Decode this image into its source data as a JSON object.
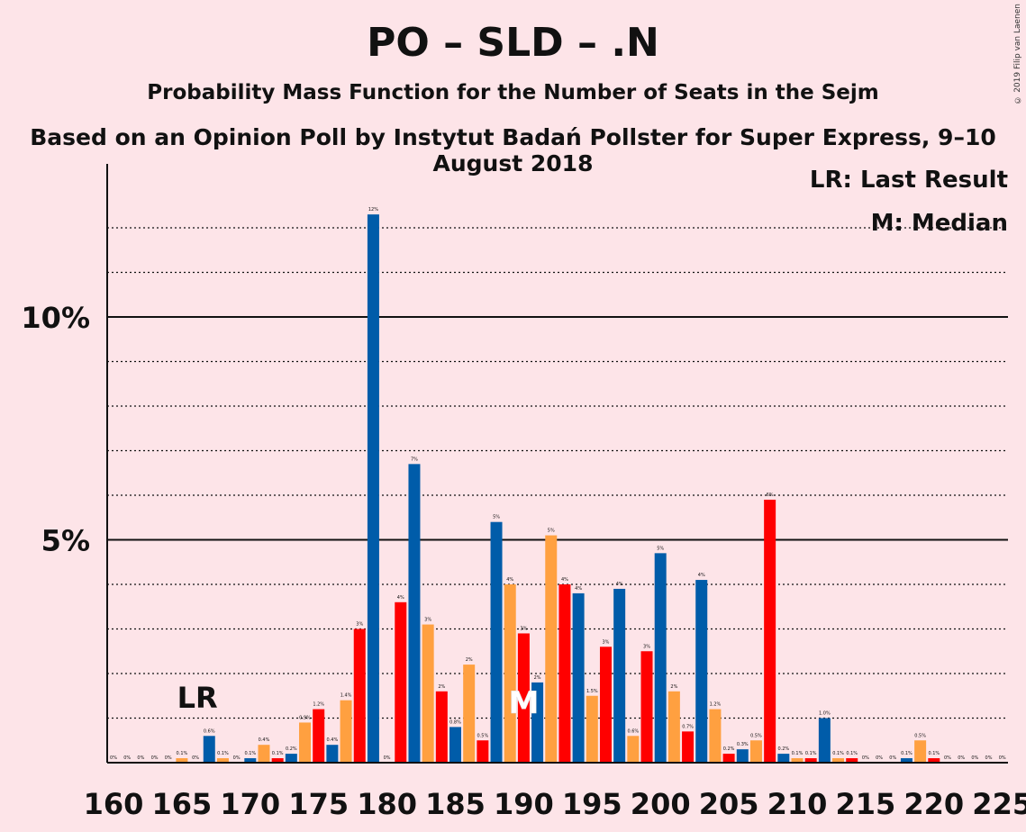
{
  "title": "PO – SLD – .N",
  "subtitle": "Probability Mass Function for the Number of Seats in the Sejm",
  "subtitle2": "Based on an Opinion Poll by Instytut Badań Pollster for Super Express, 9–10 August 2018",
  "credit": "© 2019 Filip van Laenen",
  "legend": {
    "last_result": "LR: Last Result",
    "median": "M: Median"
  },
  "markers": {
    "last_result_label": "LR",
    "last_result_seat": 166,
    "median_label": "M",
    "median_seat": 190
  },
  "colors": {
    "background": "#fde4e8",
    "blue": "#005ca9",
    "orange": "#ffa040",
    "red": "#ff0000"
  },
  "chart_data": {
    "type": "bar",
    "x_range": [
      160,
      225
    ],
    "x_ticks": [
      160,
      165,
      170,
      175,
      180,
      185,
      190,
      195,
      200,
      205,
      210,
      215,
      220,
      225
    ],
    "y_ticks": [
      {
        "value": 5,
        "label": "5%"
      },
      {
        "value": 10,
        "label": "10%"
      }
    ],
    "ylim": [
      0,
      13.4
    ],
    "grid": "dotted every 1%, solid at 5% and 10%",
    "bars": [
      {
        "seat": 160,
        "value": 0.0,
        "color": "red",
        "label": "0%"
      },
      {
        "seat": 161,
        "value": 0.0,
        "color": "blue",
        "label": "0%"
      },
      {
        "seat": 162,
        "value": 0.0,
        "color": "orange",
        "label": "0%"
      },
      {
        "seat": 163,
        "value": 0.0,
        "color": "red",
        "label": "0%"
      },
      {
        "seat": 164,
        "value": 0.0,
        "color": "blue",
        "label": "0%"
      },
      {
        "seat": 165,
        "value": 0.1,
        "color": "orange",
        "label": "0.1%"
      },
      {
        "seat": 166,
        "value": 0.0,
        "color": "red",
        "label": "0%"
      },
      {
        "seat": 167,
        "value": 0.6,
        "color": "blue",
        "label": "0.6%"
      },
      {
        "seat": 168,
        "value": 0.1,
        "color": "orange",
        "label": "0.1%"
      },
      {
        "seat": 169,
        "value": 0.0,
        "color": "red",
        "label": "0%"
      },
      {
        "seat": 170,
        "value": 0.1,
        "color": "blue",
        "label": "0.1%"
      },
      {
        "seat": 171,
        "value": 0.4,
        "color": "orange",
        "label": "0.4%"
      },
      {
        "seat": 172,
        "value": 0.1,
        "color": "red",
        "label": "0.1%"
      },
      {
        "seat": 173,
        "value": 0.2,
        "color": "blue",
        "label": "0.2%"
      },
      {
        "seat": 174,
        "value": 0.9,
        "color": "orange",
        "label": "0.9%"
      },
      {
        "seat": 175,
        "value": 1.2,
        "color": "red",
        "label": "1.2%"
      },
      {
        "seat": 176,
        "value": 0.4,
        "color": "blue",
        "label": "0.4%"
      },
      {
        "seat": 177,
        "value": 1.4,
        "color": "orange",
        "label": "1.4%"
      },
      {
        "seat": 178,
        "value": 3.0,
        "color": "red",
        "label": "3%"
      },
      {
        "seat": 179,
        "value": 12.3,
        "color": "blue",
        "label": "12%"
      },
      {
        "seat": 180,
        "value": 0.0,
        "color": "orange",
        "label": "0%"
      },
      {
        "seat": 181,
        "value": 3.6,
        "color": "red",
        "label": "4%"
      },
      {
        "seat": 182,
        "value": 6.7,
        "color": "blue",
        "label": "7%"
      },
      {
        "seat": 183,
        "value": 3.1,
        "color": "orange",
        "label": "3%"
      },
      {
        "seat": 184,
        "value": 1.6,
        "color": "red",
        "label": "2%"
      },
      {
        "seat": 185,
        "value": 0.8,
        "color": "blue",
        "label": "0.8%"
      },
      {
        "seat": 186,
        "value": 2.2,
        "color": "orange",
        "label": "2%"
      },
      {
        "seat": 187,
        "value": 0.5,
        "color": "red",
        "label": "0.5%"
      },
      {
        "seat": 188,
        "value": 5.4,
        "color": "blue",
        "label": "5%"
      },
      {
        "seat": 189,
        "value": 4.0,
        "color": "orange",
        "label": "4%"
      },
      {
        "seat": 190,
        "value": 2.9,
        "color": "red",
        "label": "3%"
      },
      {
        "seat": 191,
        "value": 1.8,
        "color": "blue",
        "label": "2%"
      },
      {
        "seat": 192,
        "value": 5.1,
        "color": "orange",
        "label": "5%"
      },
      {
        "seat": 193,
        "value": 4.0,
        "color": "red",
        "label": "4%"
      },
      {
        "seat": 194,
        "value": 3.8,
        "color": "blue",
        "label": "4%"
      },
      {
        "seat": 195,
        "value": 1.5,
        "color": "orange",
        "label": "1.5%"
      },
      {
        "seat": 196,
        "value": 2.6,
        "color": "red",
        "label": "3%"
      },
      {
        "seat": 197,
        "value": 3.9,
        "color": "blue",
        "label": "4%"
      },
      {
        "seat": 198,
        "value": 0.6,
        "color": "orange",
        "label": "0.6%"
      },
      {
        "seat": 199,
        "value": 2.5,
        "color": "red",
        "label": "3%"
      },
      {
        "seat": 200,
        "value": 4.7,
        "color": "blue",
        "label": "5%"
      },
      {
        "seat": 201,
        "value": 1.6,
        "color": "orange",
        "label": "2%"
      },
      {
        "seat": 202,
        "value": 0.7,
        "color": "red",
        "label": "0.7%"
      },
      {
        "seat": 203,
        "value": 4.1,
        "color": "blue",
        "label": "4%"
      },
      {
        "seat": 204,
        "value": 1.2,
        "color": "orange",
        "label": "1.2%"
      },
      {
        "seat": 205,
        "value": 0.2,
        "color": "red",
        "label": "0.2%"
      },
      {
        "seat": 206,
        "value": 0.3,
        "color": "blue",
        "label": "0.3%"
      },
      {
        "seat": 207,
        "value": 0.5,
        "color": "orange",
        "label": "0.5%"
      },
      {
        "seat": 208,
        "value": 5.9,
        "color": "red",
        "label": "6%"
      },
      {
        "seat": 209,
        "value": 0.2,
        "color": "blue",
        "label": "0.2%"
      },
      {
        "seat": 210,
        "value": 0.1,
        "color": "orange",
        "label": "0.1%"
      },
      {
        "seat": 211,
        "value": 0.1,
        "color": "red",
        "label": "0.1%"
      },
      {
        "seat": 212,
        "value": 1.0,
        "color": "blue",
        "label": "1.0%"
      },
      {
        "seat": 213,
        "value": 0.1,
        "color": "orange",
        "label": "0.1%"
      },
      {
        "seat": 214,
        "value": 0.1,
        "color": "red",
        "label": "0.1%"
      },
      {
        "seat": 215,
        "value": 0.0,
        "color": "blue",
        "label": "0%"
      },
      {
        "seat": 216,
        "value": 0.0,
        "color": "orange",
        "label": "0%"
      },
      {
        "seat": 217,
        "value": 0.0,
        "color": "red",
        "label": "0%"
      },
      {
        "seat": 218,
        "value": 0.1,
        "color": "blue",
        "label": "0.1%"
      },
      {
        "seat": 219,
        "value": 0.5,
        "color": "orange",
        "label": "0.5%"
      },
      {
        "seat": 220,
        "value": 0.1,
        "color": "red",
        "label": "0.1%"
      },
      {
        "seat": 221,
        "value": 0.0,
        "color": "blue",
        "label": "0%"
      },
      {
        "seat": 222,
        "value": 0.0,
        "color": "orange",
        "label": "0%"
      },
      {
        "seat": 223,
        "value": 0.0,
        "color": "red",
        "label": "0%"
      },
      {
        "seat": 224,
        "value": 0.0,
        "color": "blue",
        "label": "0%"
      },
      {
        "seat": 225,
        "value": 0.0,
        "color": "orange",
        "label": "0%"
      }
    ]
  }
}
